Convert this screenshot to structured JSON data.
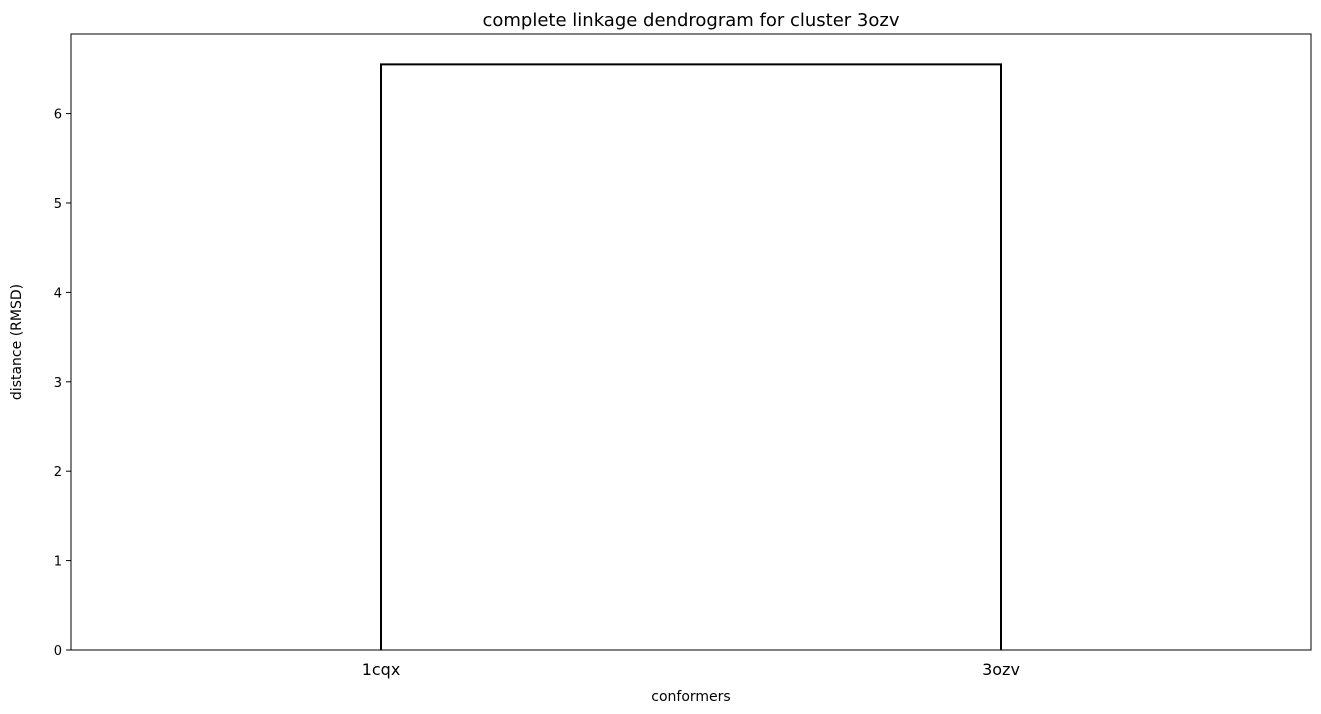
{
  "chart_data": {
    "type": "dendrogram",
    "title": "complete linkage dendrogram for cluster 3ozv",
    "xlabel": "conformers",
    "ylabel": "distance (RMSD)",
    "leaves": [
      "1cqx",
      "3ozv"
    ],
    "merges": [
      {
        "left": "1cqx",
        "right": "3ozv",
        "height": 6.55
      }
    ],
    "ylim": [
      0,
      6.89
    ],
    "yticks": [
      0,
      1,
      2,
      3,
      4,
      5,
      6
    ],
    "grid": false,
    "link_color": "#000000"
  }
}
